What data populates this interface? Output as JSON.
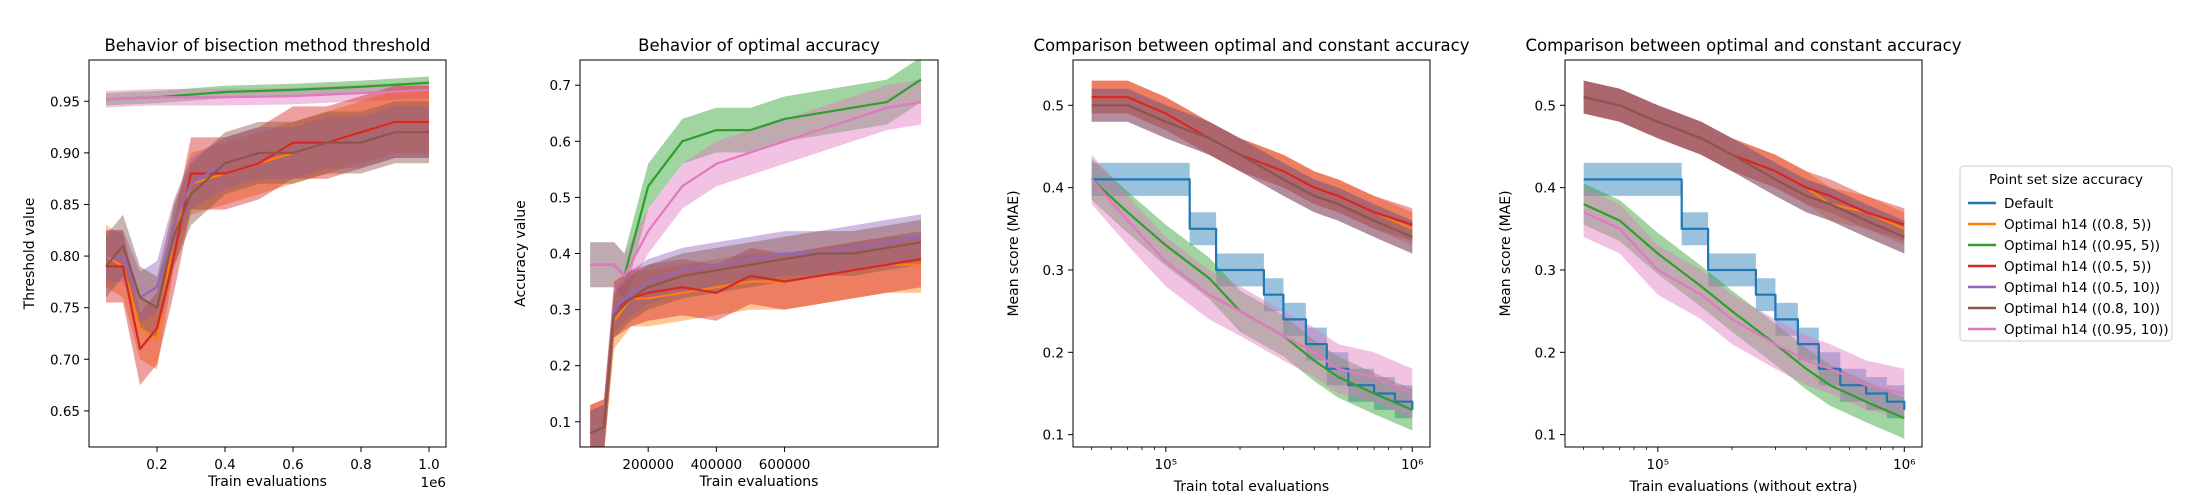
{
  "colors": {
    "Default": "#1f77b4",
    "Optimal h14 ((0.8, 5))": "#ff7f0e",
    "Optimal h14 ((0.95, 5))": "#2ca02c",
    "Optimal h14 ((0.5, 5))": "#d62728",
    "Optimal h14 ((0.5, 10))": "#9467bd",
    "Optimal h14 ((0.8, 10))": "#8c564b",
    "Optimal h14 ((0.95, 10))": "#e377c2"
  },
  "legend": {
    "title": "Point set size accuracy",
    "placement": "right-outside",
    "entries": [
      "Default",
      "Optimal h14 ((0.8, 5))",
      "Optimal h14 ((0.95, 5))",
      "Optimal h14 ((0.5, 5))",
      "Optimal h14 ((0.5, 10))",
      "Optimal h14 ((0.8, 10))",
      "Optimal h14 ((0.95, 10))"
    ]
  },
  "chart_data": [
    {
      "type": "line",
      "title": "Behavior of bisection method threshold",
      "xlabel": "Train evaluations",
      "ylabel": "Threshold value",
      "x_offset_label": "1e6",
      "xscale": "linear",
      "xlim": [
        0,
        1050000
      ],
      "ylim": [
        0.615,
        0.99
      ],
      "xticks": [
        200000,
        400000,
        600000,
        800000,
        1000000
      ],
      "xtick_labels": [
        "0.2",
        "0.4",
        "0.6",
        "0.8",
        "1.0"
      ],
      "yticks": [
        0.65,
        0.7,
        0.75,
        0.8,
        0.85,
        0.9,
        0.95
      ],
      "ytick_labels": [
        "0.65",
        "0.70",
        "0.75",
        "0.80",
        "0.85",
        "0.90",
        "0.95"
      ],
      "grid": false,
      "series": [
        {
          "name": "Optimal h14 ((0.95, 5))",
          "x": [
            50000,
            200000,
            400000,
            600000,
            800000,
            1000000
          ],
          "y": [
            0.952,
            0.954,
            0.959,
            0.961,
            0.964,
            0.968
          ],
          "band": 0.006
        },
        {
          "name": "Optimal h14 ((0.95, 10))",
          "x": [
            50000,
            200000,
            400000,
            600000,
            800000,
            1000000
          ],
          "y": [
            0.952,
            0.954,
            0.954,
            0.955,
            0.958,
            0.961
          ],
          "band": 0.008
        },
        {
          "name": "Optimal h14 ((0.8, 5))",
          "x": [
            50000,
            100000,
            150000,
            200000,
            250000,
            300000,
            400000,
            500000,
            600000,
            700000,
            800000,
            900000,
            1000000
          ],
          "y": [
            0.8,
            0.79,
            0.73,
            0.72,
            0.82,
            0.87,
            0.88,
            0.89,
            0.9,
            0.91,
            0.92,
            0.93,
            0.93
          ],
          "band": 0.03
        },
        {
          "name": "Optimal h14 ((0.5, 5))",
          "x": [
            50000,
            100000,
            150000,
            200000,
            250000,
            300000,
            400000,
            500000,
            600000,
            700000,
            800000,
            900000,
            1000000
          ],
          "y": [
            0.79,
            0.79,
            0.71,
            0.73,
            0.8,
            0.88,
            0.88,
            0.89,
            0.91,
            0.91,
            0.92,
            0.93,
            0.93
          ],
          "band": 0.035
        },
        {
          "name": "Optimal h14 ((0.5, 10))",
          "x": [
            50000,
            100000,
            150000,
            200000,
            250000,
            300000,
            400000,
            500000,
            600000,
            700000,
            800000,
            900000,
            1000000
          ],
          "y": [
            0.8,
            0.8,
            0.76,
            0.77,
            0.83,
            0.87,
            0.89,
            0.9,
            0.9,
            0.91,
            0.91,
            0.92,
            0.92
          ],
          "band": 0.025
        },
        {
          "name": "Optimal h14 ((0.8, 10))",
          "x": [
            50000,
            100000,
            150000,
            200000,
            250000,
            300000,
            400000,
            500000,
            600000,
            700000,
            800000,
            900000,
            1000000
          ],
          "y": [
            0.79,
            0.81,
            0.76,
            0.75,
            0.82,
            0.86,
            0.89,
            0.9,
            0.9,
            0.91,
            0.91,
            0.92,
            0.92
          ],
          "band": 0.03
        }
      ]
    },
    {
      "type": "line",
      "title": "Behavior of optimal accuracy",
      "xlabel": "Train evaluations",
      "ylabel": "Accuracy value",
      "xscale": "linear",
      "xlim": [
        0,
        1050000
      ],
      "ylim": [
        0.055,
        0.745
      ],
      "xticks": [
        200000,
        400000,
        600000
      ],
      "xtick_labels": [
        "200000",
        "400000",
        "600000"
      ],
      "yticks": [
        0.1,
        0.2,
        0.3,
        0.4,
        0.5,
        0.6,
        0.7
      ],
      "ytick_labels": [
        "0.1",
        "0.2",
        "0.3",
        "0.4",
        "0.5",
        "0.6",
        "0.7"
      ],
      "grid": false,
      "series": [
        {
          "name": "Optimal h14 ((0.95, 5))",
          "x": [
            30000,
            100000,
            130000,
            200000,
            300000,
            400000,
            500000,
            600000,
            700000,
            800000,
            900000,
            1000000
          ],
          "y": [
            0.38,
            0.38,
            0.36,
            0.52,
            0.6,
            0.62,
            0.62,
            0.64,
            0.65,
            0.66,
            0.67,
            0.71
          ],
          "band": 0.04
        },
        {
          "name": "Optimal h14 ((0.95, 10))",
          "x": [
            30000,
            100000,
            130000,
            200000,
            300000,
            400000,
            500000,
            600000,
            700000,
            800000,
            900000,
            1000000
          ],
          "y": [
            0.38,
            0.38,
            0.36,
            0.44,
            0.52,
            0.56,
            0.58,
            0.6,
            0.62,
            0.64,
            0.66,
            0.67
          ],
          "band": 0.04
        },
        {
          "name": "Optimal h14 ((0.8, 5))",
          "x": [
            30000,
            70000,
            100000,
            150000,
            200000,
            300000,
            400000,
            500000,
            600000,
            700000,
            800000,
            900000,
            1000000
          ],
          "y": [
            0.08,
            0.09,
            0.28,
            0.32,
            0.32,
            0.33,
            0.34,
            0.35,
            0.35,
            0.36,
            0.37,
            0.38,
            0.38
          ],
          "band": 0.05
        },
        {
          "name": "Optimal h14 ((0.5, 5))",
          "x": [
            30000,
            70000,
            100000,
            150000,
            200000,
            300000,
            400000,
            500000,
            600000,
            700000,
            800000,
            900000,
            1000000
          ],
          "y": [
            0.08,
            0.09,
            0.3,
            0.32,
            0.33,
            0.34,
            0.33,
            0.36,
            0.35,
            0.36,
            0.37,
            0.38,
            0.39
          ],
          "band": 0.05
        },
        {
          "name": "Optimal h14 ((0.5, 10))",
          "x": [
            30000,
            70000,
            100000,
            150000,
            200000,
            300000,
            400000,
            500000,
            600000,
            700000,
            800000,
            900000,
            1000000
          ],
          "y": [
            0.08,
            0.09,
            0.3,
            0.33,
            0.35,
            0.37,
            0.38,
            0.39,
            0.4,
            0.4,
            0.41,
            0.42,
            0.43
          ],
          "band": 0.04
        },
        {
          "name": "Optimal h14 ((0.8, 10))",
          "x": [
            30000,
            70000,
            100000,
            150000,
            200000,
            300000,
            400000,
            500000,
            600000,
            700000,
            800000,
            900000,
            1000000
          ],
          "y": [
            0.08,
            0.09,
            0.29,
            0.32,
            0.34,
            0.36,
            0.37,
            0.38,
            0.39,
            0.4,
            0.4,
            0.41,
            0.42
          ],
          "band": 0.04
        }
      ]
    },
    {
      "type": "line",
      "title": "Comparison between optimal and constant accuracy",
      "xlabel": "Train total evaluations",
      "ylabel": "Mean score (MAE)",
      "xscale": "log",
      "xlim": [
        42000,
        1180000
      ],
      "ylim": [
        0.085,
        0.555
      ],
      "xticks": [
        100000,
        1000000
      ],
      "xtick_labels": [
        "10⁵",
        "10⁶"
      ],
      "yticks": [
        0.1,
        0.2,
        0.3,
        0.4,
        0.5
      ],
      "ytick_labels": [
        "0.1",
        "0.2",
        "0.3",
        "0.4",
        "0.5"
      ],
      "grid": false,
      "series": [
        {
          "name": "Default",
          "step": true,
          "x": [
            50000,
            90000,
            125000,
            160000,
            200000,
            250000,
            300000,
            370000,
            450000,
            550000,
            700000,
            850000,
            1000000
          ],
          "y": [
            0.41,
            0.41,
            0.35,
            0.3,
            0.3,
            0.27,
            0.24,
            0.21,
            0.18,
            0.16,
            0.15,
            0.14,
            0.13
          ],
          "band": 0.02
        },
        {
          "name": "Optimal h14 ((0.8, 5))",
          "x": [
            50000,
            70000,
            100000,
            150000,
            200000,
            300000,
            400000,
            500000,
            700000,
            1000000
          ],
          "y": [
            0.51,
            0.51,
            0.49,
            0.46,
            0.44,
            0.42,
            0.4,
            0.39,
            0.37,
            0.35
          ],
          "band": 0.02
        },
        {
          "name": "Optimal h14 ((0.95, 5))",
          "x": [
            50000,
            70000,
            100000,
            150000,
            200000,
            300000,
            400000,
            500000,
            700000,
            1000000
          ],
          "y": [
            0.41,
            0.37,
            0.33,
            0.29,
            0.25,
            0.22,
            0.19,
            0.17,
            0.15,
            0.13
          ],
          "band": 0.025
        },
        {
          "name": "Optimal h14 ((0.5, 5))",
          "x": [
            50000,
            70000,
            100000,
            150000,
            200000,
            300000,
            400000,
            500000,
            700000,
            1000000
          ],
          "y": [
            0.51,
            0.51,
            0.49,
            0.46,
            0.44,
            0.42,
            0.4,
            0.39,
            0.37,
            0.355
          ],
          "band": 0.02
        },
        {
          "name": "Optimal h14 ((0.5, 10))",
          "x": [
            50000,
            70000,
            100000,
            150000,
            200000,
            300000,
            400000,
            500000,
            700000,
            1000000
          ],
          "y": [
            0.5,
            0.5,
            0.48,
            0.46,
            0.44,
            0.41,
            0.39,
            0.38,
            0.36,
            0.34
          ],
          "band": 0.02
        },
        {
          "name": "Optimal h14 ((0.8, 10))",
          "x": [
            50000,
            70000,
            100000,
            150000,
            200000,
            300000,
            400000,
            500000,
            700000,
            1000000
          ],
          "y": [
            0.5,
            0.5,
            0.48,
            0.46,
            0.44,
            0.41,
            0.39,
            0.38,
            0.36,
            0.34
          ],
          "band": 0.02
        },
        {
          "name": "Optimal h14 ((0.95, 10))",
          "x": [
            50000,
            70000,
            100000,
            150000,
            200000,
            300000,
            400000,
            500000,
            700000,
            1000000
          ],
          "y": [
            0.41,
            0.36,
            0.31,
            0.27,
            0.25,
            0.22,
            0.2,
            0.18,
            0.17,
            0.15
          ],
          "band": 0.03
        }
      ]
    },
    {
      "type": "line",
      "title": "Comparison between optimal and constant accuracy",
      "xlabel": "Train evaluations (without extra)",
      "ylabel": "Mean score (MAE)",
      "xscale": "log",
      "xlim": [
        42000,
        1180000
      ],
      "ylim": [
        0.085,
        0.555
      ],
      "xticks": [
        100000,
        1000000
      ],
      "xtick_labels": [
        "10⁵",
        "10⁶"
      ],
      "yticks": [
        0.1,
        0.2,
        0.3,
        0.4,
        0.5
      ],
      "ytick_labels": [
        "0.1",
        "0.2",
        "0.3",
        "0.4",
        "0.5"
      ],
      "grid": false,
      "series": [
        {
          "name": "Default",
          "step": true,
          "x": [
            50000,
            90000,
            125000,
            160000,
            200000,
            250000,
            300000,
            370000,
            450000,
            550000,
            700000,
            850000,
            1000000
          ],
          "y": [
            0.41,
            0.41,
            0.35,
            0.3,
            0.3,
            0.27,
            0.24,
            0.21,
            0.18,
            0.16,
            0.15,
            0.14,
            0.13
          ],
          "band": 0.02
        },
        {
          "name": "Optimal h14 ((0.8, 5))",
          "x": [
            50000,
            70000,
            100000,
            150000,
            200000,
            300000,
            400000,
            500000,
            700000,
            1000000
          ],
          "y": [
            0.51,
            0.5,
            0.48,
            0.46,
            0.44,
            0.42,
            0.4,
            0.38,
            0.37,
            0.35
          ],
          "band": 0.02
        },
        {
          "name": "Optimal h14 ((0.95, 5))",
          "x": [
            50000,
            70000,
            100000,
            150000,
            200000,
            300000,
            400000,
            500000,
            700000,
            1000000
          ],
          "y": [
            0.38,
            0.36,
            0.32,
            0.28,
            0.25,
            0.21,
            0.18,
            0.16,
            0.14,
            0.12
          ],
          "band": 0.025
        },
        {
          "name": "Optimal h14 ((0.5, 5))",
          "x": [
            50000,
            70000,
            100000,
            150000,
            200000,
            300000,
            400000,
            500000,
            700000,
            1000000
          ],
          "y": [
            0.51,
            0.5,
            0.48,
            0.46,
            0.44,
            0.42,
            0.4,
            0.39,
            0.37,
            0.355
          ],
          "band": 0.02
        },
        {
          "name": "Optimal h14 ((0.5, 10))",
          "x": [
            50000,
            70000,
            100000,
            150000,
            200000,
            300000,
            400000,
            500000,
            700000,
            1000000
          ],
          "y": [
            0.51,
            0.5,
            0.48,
            0.46,
            0.44,
            0.41,
            0.39,
            0.38,
            0.36,
            0.34
          ],
          "band": 0.02
        },
        {
          "name": "Optimal h14 ((0.8, 10))",
          "x": [
            50000,
            70000,
            100000,
            150000,
            200000,
            300000,
            400000,
            500000,
            700000,
            1000000
          ],
          "y": [
            0.51,
            0.5,
            0.48,
            0.46,
            0.44,
            0.41,
            0.39,
            0.38,
            0.36,
            0.34
          ],
          "band": 0.02
        },
        {
          "name": "Optimal h14 ((0.95, 10))",
          "x": [
            50000,
            70000,
            100000,
            150000,
            200000,
            300000,
            400000,
            500000,
            700000,
            1000000
          ],
          "y": [
            0.37,
            0.35,
            0.3,
            0.27,
            0.24,
            0.21,
            0.19,
            0.18,
            0.16,
            0.15
          ],
          "band": 0.03
        }
      ]
    }
  ]
}
